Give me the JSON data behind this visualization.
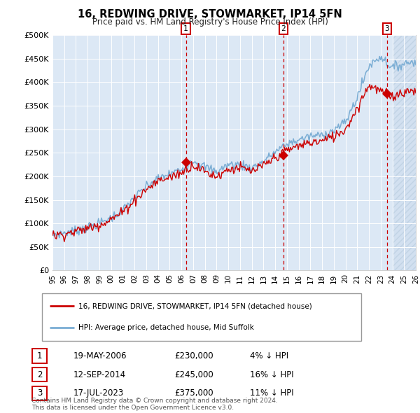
{
  "title": "16, REDWING DRIVE, STOWMARKET, IP14 5FN",
  "subtitle": "Price paid vs. HM Land Registry's House Price Index (HPI)",
  "ylim": [
    0,
    500000
  ],
  "yticks": [
    0,
    50000,
    100000,
    150000,
    200000,
    250000,
    300000,
    350000,
    400000,
    450000,
    500000
  ],
  "background_color": "#ffffff",
  "chart_bg": "#dce8f5",
  "hpi_color": "#7aadd4",
  "sale_color": "#cc0000",
  "legend_label_red": "16, REDWING DRIVE, STOWMARKET, IP14 5FN (detached house)",
  "legend_label_blue": "HPI: Average price, detached house, Mid Suffolk",
  "transactions": [
    {
      "num": "1",
      "date_x": 2006.38,
      "price": 230000,
      "dline_x": 2006.38
    },
    {
      "num": "2",
      "date_x": 2014.71,
      "price": 245000,
      "dline_x": 2014.71
    },
    {
      "num": "3",
      "date_x": 2023.54,
      "price": 375000,
      "dline_x": 2023.54
    }
  ],
  "table_rows": [
    {
      "num": "1",
      "date": "19-MAY-2006",
      "price": "£230,000",
      "pct": "4% ↓ HPI"
    },
    {
      "num": "2",
      "date": "12-SEP-2014",
      "price": "£245,000",
      "pct": "16% ↓ HPI"
    },
    {
      "num": "3",
      "date": "17-JUL-2023",
      "price": "£375,000",
      "pct": "11% ↓ HPI"
    }
  ],
  "footer": "Contains HM Land Registry data © Crown copyright and database right 2024.\nThis data is licensed under the Open Government Licence v3.0.",
  "xmin": 1995,
  "xmax": 2026,
  "hpi_anchors": [
    [
      1995,
      76000
    ],
    [
      1996,
      80000
    ],
    [
      1997,
      85000
    ],
    [
      1998,
      92000
    ],
    [
      1999,
      100000
    ],
    [
      2000,
      112000
    ],
    [
      2001,
      128000
    ],
    [
      2002,
      155000
    ],
    [
      2003,
      178000
    ],
    [
      2004,
      195000
    ],
    [
      2005,
      205000
    ],
    [
      2006,
      215000
    ],
    [
      2007,
      235000
    ],
    [
      2008,
      220000
    ],
    [
      2009,
      210000
    ],
    [
      2010,
      225000
    ],
    [
      2011,
      225000
    ],
    [
      2012,
      218000
    ],
    [
      2013,
      232000
    ],
    [
      2014,
      252000
    ],
    [
      2015,
      268000
    ],
    [
      2016,
      278000
    ],
    [
      2017,
      285000
    ],
    [
      2018,
      288000
    ],
    [
      2019,
      298000
    ],
    [
      2020,
      315000
    ],
    [
      2021,
      368000
    ],
    [
      2022,
      435000
    ],
    [
      2023,
      455000
    ],
    [
      2024,
      430000
    ],
    [
      2025,
      440000
    ],
    [
      2026,
      445000
    ]
  ],
  "red_anchors": [
    [
      1995,
      74000
    ],
    [
      1996,
      78000
    ],
    [
      1997,
      83000
    ],
    [
      1998,
      90000
    ],
    [
      1999,
      98000
    ],
    [
      2000,
      109000
    ],
    [
      2001,
      124000
    ],
    [
      2002,
      150000
    ],
    [
      2003,
      172000
    ],
    [
      2004,
      190000
    ],
    [
      2005,
      198000
    ],
    [
      2006,
      208000
    ],
    [
      2007,
      225000
    ],
    [
      2008,
      210000
    ],
    [
      2009,
      200000
    ],
    [
      2010,
      215000
    ],
    [
      2011,
      218000
    ],
    [
      2012,
      210000
    ],
    [
      2013,
      222000
    ],
    [
      2014,
      240000
    ],
    [
      2015,
      255000
    ],
    [
      2016,
      265000
    ],
    [
      2017,
      272000
    ],
    [
      2018,
      275000
    ],
    [
      2019,
      285000
    ],
    [
      2020,
      300000
    ],
    [
      2021,
      345000
    ],
    [
      2022,
      395000
    ],
    [
      2023,
      380000
    ],
    [
      2024,
      370000
    ],
    [
      2025,
      380000
    ],
    [
      2026,
      382000
    ]
  ],
  "hatch_start": 2024.0
}
